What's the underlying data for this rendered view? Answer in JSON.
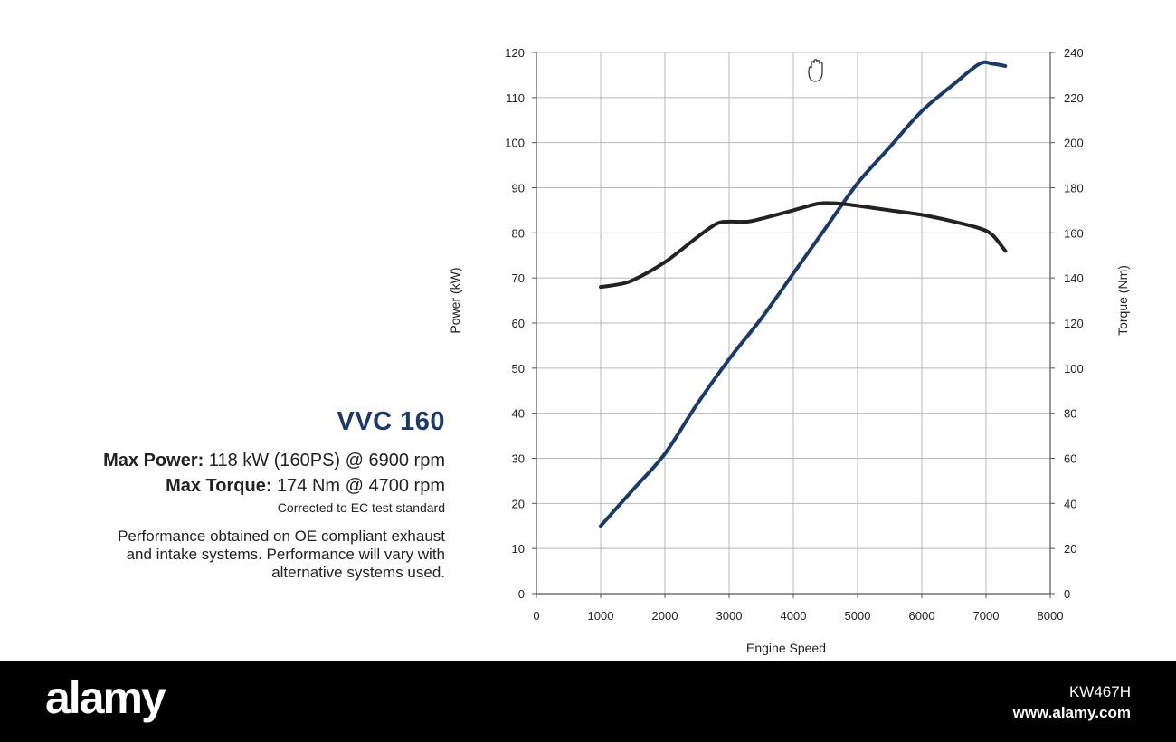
{
  "info": {
    "title": "VVC 160",
    "max_power_label": "Max Power:",
    "max_power_value": "118 kW (160PS) @ 6900 rpm",
    "max_torque_label": "Max Torque:",
    "max_torque_value": "174 Nm @ 4700 rpm",
    "corrected_note": "Corrected to EC test standard",
    "performance_note_lines": [
      "Performance obtained on OE compliant exhaust",
      "and intake systems. Performance will vary with",
      "alternative systems used."
    ]
  },
  "footer": {
    "logo": "alamy",
    "image_id": "KW467H",
    "url": "www.alamy.com"
  },
  "chart_data": {
    "type": "line",
    "xlabel": "Engine Speed",
    "ylabel_left": "Power (kW)",
    "ylabel_right": "Torque (Nm)",
    "xlim": [
      0,
      8000
    ],
    "ylim_left": [
      0,
      120
    ],
    "ylim_right": [
      0,
      240
    ],
    "x_ticks": [
      0,
      1000,
      2000,
      3000,
      4000,
      5000,
      6000,
      7000,
      8000
    ],
    "y_ticks_left": [
      0,
      10,
      20,
      30,
      40,
      50,
      60,
      70,
      80,
      90,
      100,
      110,
      120
    ],
    "y_ticks_right": [
      0,
      20,
      40,
      60,
      80,
      100,
      120,
      140,
      160,
      180,
      200,
      220,
      240
    ],
    "grid": true,
    "series": [
      {
        "key": "power",
        "axis": "left",
        "color": "#1b3a6b",
        "x": [
          1000,
          1500,
          2000,
          2500,
          3000,
          3500,
          4000,
          4500,
          5000,
          5500,
          6000,
          6500,
          6900,
          7100,
          7300
        ],
        "values": [
          15,
          23,
          31,
          42,
          52,
          61,
          71,
          81,
          91,
          99,
          107,
          113,
          117.5,
          117.5,
          117
        ]
      },
      {
        "key": "torque",
        "axis": "right",
        "color": "#222222",
        "x": [
          1000,
          1250,
          1500,
          2000,
          2500,
          2800,
          3000,
          3300,
          3600,
          4000,
          4400,
          4700,
          5000,
          5500,
          6000,
          6500,
          6900,
          7100,
          7300
        ],
        "values": [
          136,
          137,
          139,
          147,
          158,
          164,
          165,
          165,
          167,
          170,
          173,
          173,
          172,
          170,
          168,
          165,
          162,
          159,
          152
        ]
      }
    ]
  }
}
